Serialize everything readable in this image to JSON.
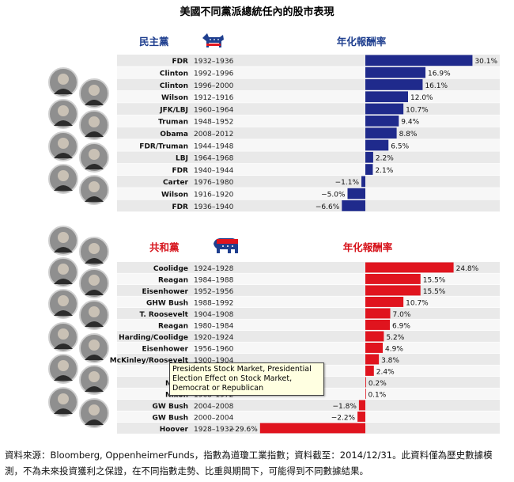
{
  "title": "美國不同黨派總統任內的股市表現",
  "tooltip": "Presidents Stock Market, Presidential Election Effect on Stock Market, Democrat or Republican",
  "footnote_line1": "資料來源：Bloomberg, OppenheimerFunds，指數為道瓊工業指數；資料截至：2014/12/31。此資料僅為歷史數據模",
  "footnote_line2": "測，不為未來投資獲利之保證，在不同指數走勢、比重與期間下，可能得到不同數據結果。",
  "colors": {
    "democrat": "#1f2a8c",
    "republican": "#e0141e",
    "row_even": "#e9e9e9",
    "row_odd": "#f7f7f7",
    "header_blue": "#1f3f8f",
    "header_red": "#d6121a"
  },
  "icons": [
    "donkey-icon",
    "elephant-icon",
    "portrait-icon"
  ],
  "chart_data": [
    {
      "type": "bar",
      "party_label": "民主黨",
      "value_header": "年化報酬率",
      "unit": "%",
      "categories": [
        "FDR",
        "Clinton",
        "Clinton",
        "Wilson",
        "JFK/LBJ",
        "Truman",
        "Obama",
        "FDR/Truman",
        "LBJ",
        "FDR",
        "Carter",
        "Wilson",
        "FDR"
      ],
      "terms": [
        "1932–1936",
        "1992–1996",
        "1996–2000",
        "1912–1916",
        "1960–1964",
        "1948–1952",
        "2008–2012",
        "1944–1948",
        "1964–1968",
        "1940–1944",
        "1976–1980",
        "1916–1920",
        "1936–1940"
      ],
      "values": [
        30.1,
        16.9,
        16.1,
        12.0,
        10.7,
        9.4,
        8.8,
        6.5,
        2.2,
        2.1,
        -1.1,
        -5.0,
        -6.6
      ],
      "labels": [
        "30.1%",
        "16.9%",
        "16.1%",
        "12.0%",
        "10.7%",
        "9.4%",
        "8.8%",
        "6.5%",
        "2.2%",
        "2.1%",
        "−1.1%",
        "−5.0%",
        "−6.6%"
      ],
      "color": "#1f2a8c"
    },
    {
      "type": "bar",
      "party_label": "共和黨",
      "value_header": "年化報酬率",
      "unit": "%",
      "categories": [
        "Coolidge",
        "Reagan",
        "Eisenhower",
        "GHW Bush",
        "T. Roosevelt",
        "Reagan",
        "Harding/Coolidge",
        "Eisenhower",
        "McKinley/Roosevelt",
        "",
        "Nixon",
        "Nixon",
        "GW Bush",
        "GW Bush",
        "Hoover"
      ],
      "terms": [
        "1924–1928",
        "1984–1988",
        "1952–1956",
        "1988–1992",
        "1904–1908",
        "1980–1984",
        "1920–1924",
        "1956–1960",
        "1900–1904",
        "",
        "",
        "1968–1972",
        "2004–2008",
        "2000–2004",
        "1928–1932"
      ],
      "values": [
        24.8,
        15.5,
        15.5,
        10.7,
        7.0,
        6.9,
        5.2,
        4.9,
        3.8,
        2.4,
        0.2,
        0.1,
        -1.8,
        -2.2,
        -29.6
      ],
      "labels": [
        "24.8%",
        "15.5%",
        "15.5%",
        "10.7%",
        "7.0%",
        "6.9%",
        "5.2%",
        "4.9%",
        "3.8%",
        "2.4%",
        "0.2%",
        "0.1%",
        "−1.8%",
        "−2.2%",
        "−29.6%"
      ],
      "color": "#e0141e"
    }
  ]
}
